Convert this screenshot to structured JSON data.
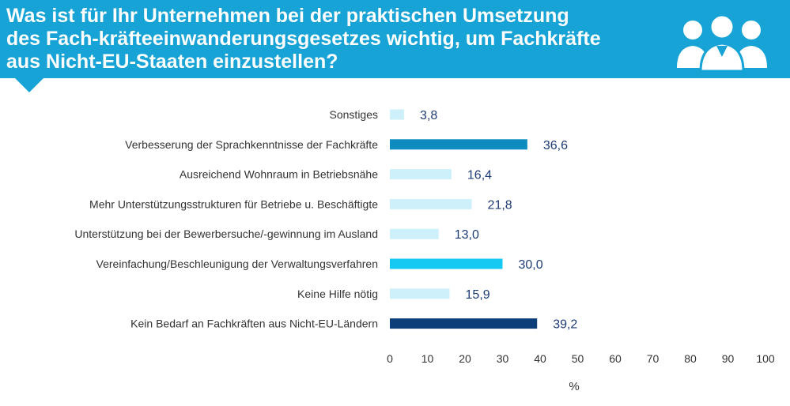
{
  "title": "Was ist für Ihr Unternehmen bei der praktischen Umsetzung\ndes Fach-kräfteeinwanderungsgesetzes wichtig, um Fachkräfte\naus Nicht-EU-Staaten einzustellen?",
  "icon": "people-group-icon",
  "colors": {
    "header": "#17a3d6",
    "light_bar": "#cdf0fb",
    "medium_bar": "#0e8cbf",
    "cyan_bar": "#16c9f2",
    "dark_bar": "#0c3e7a",
    "value_text": "#1d3b74"
  },
  "chart_data": {
    "type": "bar",
    "orientation": "horizontal",
    "categories": [
      "Sonstiges",
      "Verbesserung der Sprachkenntnisse der Fachkräfte",
      "Ausreichend Wohnraum in Betriebsnähe",
      "Mehr Unterstützungsstrukturen für Betriebe u. Beschäftigte",
      "Unterstützung bei der Bewerbersuche/-gewinnung im Ausland",
      "Vereinfachung/Beschleunigung der Verwaltungsverfahren",
      "Keine Hilfe nötig",
      "Kein Bedarf an Fachkräften aus Nicht-EU-Ländern"
    ],
    "values": [
      3.8,
      36.6,
      16.4,
      21.8,
      13.0,
      30.0,
      15.9,
      39.2
    ],
    "value_labels": [
      "3,8",
      "36,6",
      "16,4",
      "21,8",
      "13,0",
      "30,0",
      "15,9",
      "39,2"
    ],
    "bar_colors": [
      "#cdf0fb",
      "#0e8cbf",
      "#cdf0fb",
      "#cdf0fb",
      "#cdf0fb",
      "#16c9f2",
      "#cdf0fb",
      "#0c3e7a"
    ],
    "xticks": [
      "0",
      "10",
      "20",
      "30",
      "40",
      "50",
      "60",
      "70",
      "80",
      "90",
      "100"
    ],
    "xlim": [
      0,
      100
    ],
    "xlabel": "%",
    "grid": false,
    "legend": "none"
  }
}
